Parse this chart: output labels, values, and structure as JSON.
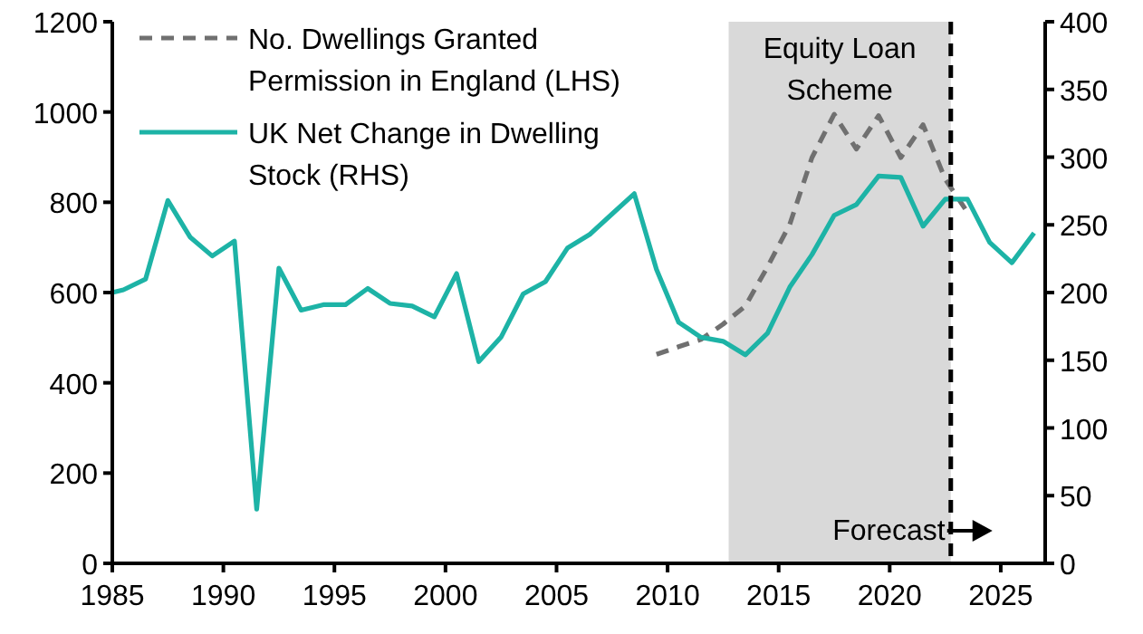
{
  "chart_data": {
    "type": "line",
    "legend": "top left",
    "xlim": [
      1985,
      2027
    ],
    "xticks": [
      1985,
      1990,
      1995,
      2000,
      2005,
      2010,
      2015,
      2020,
      2025
    ],
    "ylim": [
      0,
      1200
    ],
    "yticks": [
      0,
      200,
      400,
      600,
      800,
      1000,
      1200
    ],
    "y2lim": [
      0,
      400
    ],
    "y2ticks": [
      0,
      50,
      100,
      150,
      200,
      250,
      300,
      350,
      400
    ],
    "bands": [
      {
        "axis": "x",
        "from": 2012.75,
        "to": 2022.75,
        "label": "Equity Loan Scheme",
        "color": "#d9d9d9"
      }
    ],
    "ref_lines": [
      {
        "axis": "x",
        "value": 2022.75,
        "label": "Forecast",
        "color": "#000000",
        "line_style": "dashed"
      }
    ],
    "series": [
      {
        "name": "No. Dwellings Granted Permission in England (LHS)",
        "color": "#707070",
        "line_style": "dashed",
        "x": [
          2009.5,
          2010.5,
          2011.5,
          2012.5,
          2013.5,
          2014.5,
          2015.5,
          2016.5,
          2017.5,
          2018.5,
          2019.5,
          2020.5,
          2021.5,
          2022.5,
          2023.5
        ],
        "values": [
          463,
          480,
          496,
          530,
          570,
          657,
          751,
          899,
          995,
          918,
          992,
          899,
          972,
          851,
          778
        ]
      },
      {
        "name": "UK Net Change in Dwelling Stock (RHS)",
        "color": "#1db3a6",
        "axis": "y2",
        "line_style": "solid",
        "x": [
          1985,
          1985.5,
          1986.5,
          1987.5,
          1988.5,
          1989.5,
          1990.5,
          1991.5,
          1992.5,
          1993.5,
          1994.5,
          1995.5,
          1996.5,
          1997.5,
          1998.5,
          1999.5,
          2000.5,
          2001.5,
          2002.5,
          2003.5,
          2004.5,
          2005.5,
          2006.5,
          2007.5,
          2008.5,
          2009.5,
          2010.5,
          2011.5,
          2012.5,
          2013.5,
          2014.5,
          2015.5,
          2016.5,
          2017.5,
          2018.5,
          2019.5,
          2020.5,
          2021.5,
          2022.5,
          2023.5,
          2024.5,
          2025.5,
          2026.5
        ],
        "values": [
          200,
          202,
          210,
          268,
          241,
          227,
          238,
          40,
          218,
          187,
          191,
          191,
          203,
          192,
          190,
          182,
          214,
          149,
          167,
          199,
          208,
          233,
          243,
          258,
          273,
          217,
          178,
          167,
          164,
          154,
          170,
          204,
          228,
          257,
          265,
          286,
          285,
          249,
          269,
          269,
          237,
          222,
          244
        ]
      }
    ]
  }
}
